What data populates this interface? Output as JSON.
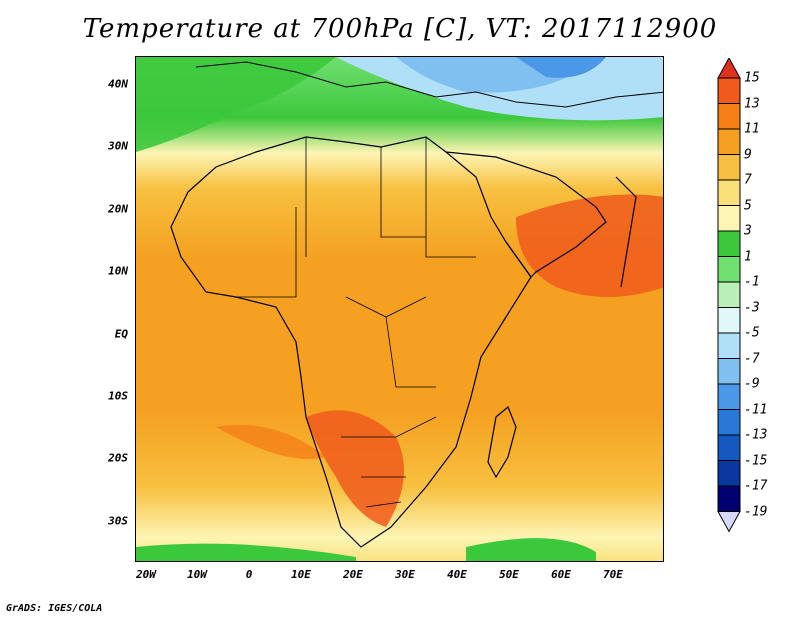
{
  "title": "Temperature at 700hPa [C], VT: 2017112900",
  "map": {
    "lat_labels": [
      "40N",
      "30N",
      "20N",
      "10N",
      "EQ",
      "10S",
      "20S",
      "30S"
    ],
    "lon_labels": [
      "20W",
      "10W",
      "0",
      "10E",
      "20E",
      "30E",
      "40E",
      "50E",
      "60E",
      "70E"
    ]
  },
  "colorbar": {
    "labels": [
      "15",
      "13",
      "11",
      "9",
      "7",
      "5",
      "3",
      "1",
      "-1",
      "-3",
      "-5",
      "-7",
      "-9",
      "-11",
      "-13",
      "-15",
      "-17",
      "-19"
    ],
    "colors": [
      "#e0301e",
      "#f05a1c",
      "#f57f17",
      "#f5a020",
      "#f8c040",
      "#f9e07a",
      "#fdf5b4",
      "#3cc83c",
      "#70e070",
      "#b8f0b8",
      "#dff8f8",
      "#b0e0f8",
      "#80c0f0",
      "#4c98e8",
      "#2878d8",
      "#1458c0",
      "#0838a0",
      "#000070"
    ],
    "top_arrow_color": "#e0301e",
    "bottom_arrow_color": "#d8d8ff"
  },
  "footer": "GrADS: IGES/COLA"
}
